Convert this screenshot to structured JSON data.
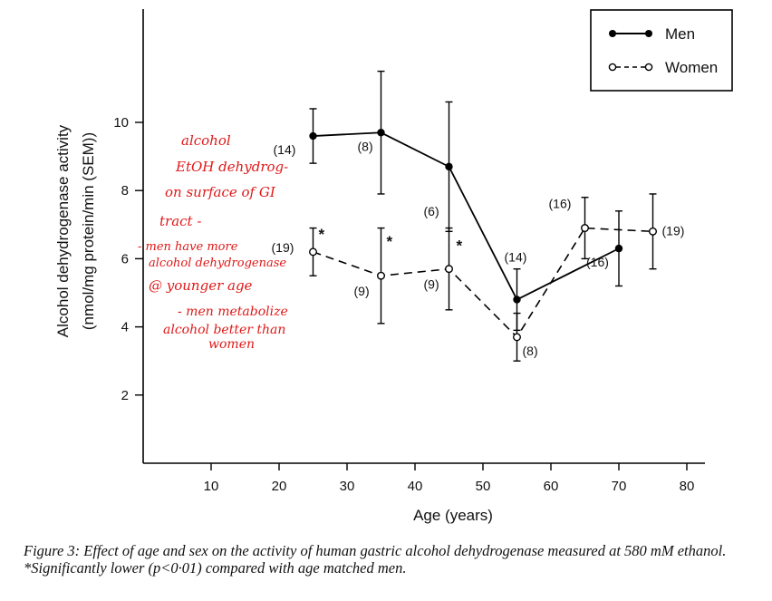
{
  "chart_data": {
    "type": "line",
    "xlabel": "Age (years)",
    "ylabel_lines": [
      "Alcohol dehydrogenase activity",
      "(nmol/mg protein/min (SEM))"
    ],
    "xlim": [
      0,
      85
    ],
    "ylim": [
      0,
      11
    ],
    "x_ticks": [
      10,
      20,
      30,
      40,
      50,
      60,
      70,
      80
    ],
    "y_ticks": [
      2,
      4,
      6,
      8,
      10
    ],
    "series": [
      {
        "name": "Men",
        "marker": "filled",
        "line": "solid",
        "points": [
          {
            "x": 25,
            "y": 9.6,
            "err": 0.8,
            "n": "(14)"
          },
          {
            "x": 35,
            "y": 9.7,
            "err": 1.8,
            "n": "(8)"
          },
          {
            "x": 45,
            "y": 8.7,
            "err": 1.9,
            "n": "(6)"
          },
          {
            "x": 55,
            "y": 4.8,
            "err": 0.9,
            "n": "(14)"
          },
          {
            "x": 70,
            "y": 6.3,
            "err": 1.1,
            "n": "(16)"
          }
        ]
      },
      {
        "name": "Women",
        "marker": "open",
        "line": "dashed",
        "points": [
          {
            "x": 25,
            "y": 6.2,
            "err": 0.7,
            "n": "(19)",
            "significant": true
          },
          {
            "x": 35,
            "y": 5.5,
            "err": 1.4,
            "n": "(9)",
            "significant": true
          },
          {
            "x": 45,
            "y": 5.7,
            "err": 1.2,
            "n": "(9)",
            "significant": true
          },
          {
            "x": 55,
            "y": 3.7,
            "err": 0.7,
            "n": "(8)"
          },
          {
            "x": 65,
            "y": 6.9,
            "err": 0.9,
            "n": "(16)"
          },
          {
            "x": 75,
            "y": 6.8,
            "err": 1.1,
            "n": "(19)"
          }
        ]
      }
    ],
    "significance_marker": "*",
    "legend_position": "top-right",
    "grid": false
  },
  "handwritten_note": [
    "alcohol",
    "EtOH dehydrog-",
    "on surface of GI",
    "tract -",
    "- men have more",
    "alcohol dehydrogenase",
    "@ younger age",
    "- men metabolize",
    "alcohol better than",
    "women"
  ],
  "caption": "Figure 3: Effect of age and sex on the activity of human gastric alcohol dehydrogenase measured at 580 mM ethanol. *Significantly lower (p<0·01) compared with age matched men.",
  "colors": {
    "ink": "#111111",
    "annotation": "#e01818"
  }
}
